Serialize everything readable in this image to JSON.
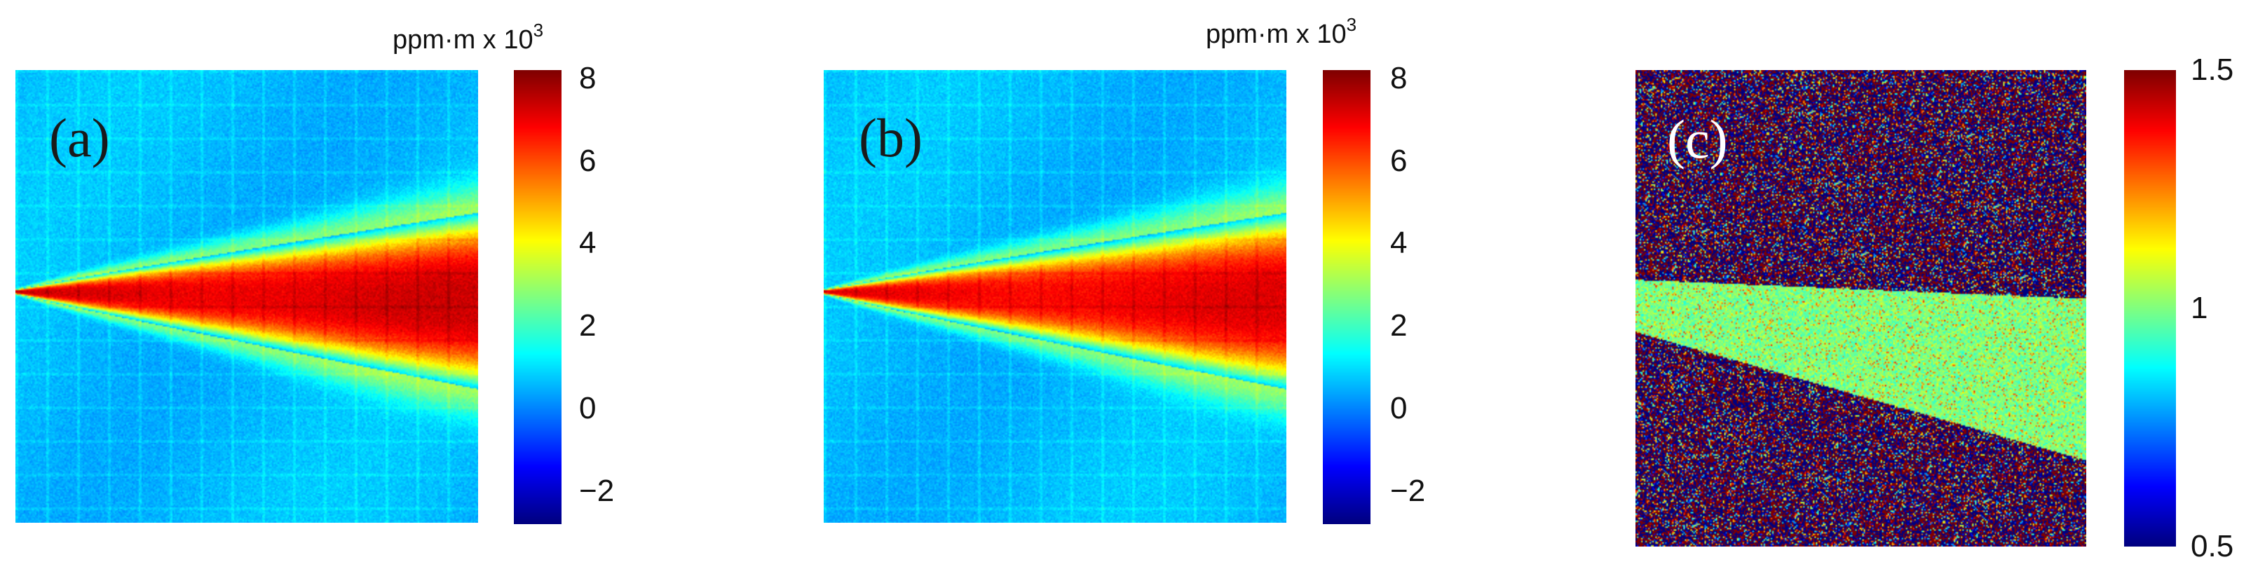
{
  "chart_data": [
    {
      "type": "heatmap",
      "panel_label": "(a)",
      "label_color": "#1a1a1a",
      "colorbar": {
        "title_prefix": "ppm·m x 10",
        "title_exponent": "3",
        "range": [
          -2.8,
          8.2
        ],
        "ticks": [
          8,
          6,
          4,
          2,
          0,
          -2
        ],
        "tick_labels": [
          "8",
          "6",
          "4",
          "2",
          "0",
          "−2"
        ]
      },
      "field": {
        "description": "methane plume concentration-path-length",
        "background_level": 0.6,
        "plume_peak_level": 7.2,
        "plume_source_side": "left",
        "plume_direction": "right, widening"
      }
    },
    {
      "type": "heatmap",
      "panel_label": "(b)",
      "label_color": "#1a1a1a",
      "colorbar": {
        "title_prefix": "ppm·m x 10",
        "title_exponent": "3",
        "range": [
          -2.8,
          8.2
        ],
        "ticks": [
          8,
          6,
          4,
          2,
          0,
          -2
        ],
        "tick_labels": [
          "8",
          "6",
          "4",
          "2",
          "0",
          "−2"
        ]
      },
      "field": {
        "description": "methane plume concentration-path-length (reconstruction)",
        "background_level": 0.6,
        "plume_peak_level": 7.0,
        "plume_source_side": "left",
        "plume_direction": "right, widening"
      }
    },
    {
      "type": "heatmap",
      "panel_label": "(c)",
      "label_color": "#ffffff",
      "colorbar": {
        "title_prefix": "",
        "title_exponent": "",
        "range": [
          0.5,
          1.5
        ],
        "ticks": [
          1.5,
          1,
          0.5
        ],
        "tick_labels": [
          "1.5",
          "1",
          "0.5"
        ]
      },
      "field": {
        "description": "ratio of (b) to (a)",
        "plume_ratio_level": 1.0,
        "background": "noisy, saturated high/low"
      }
    }
  ]
}
